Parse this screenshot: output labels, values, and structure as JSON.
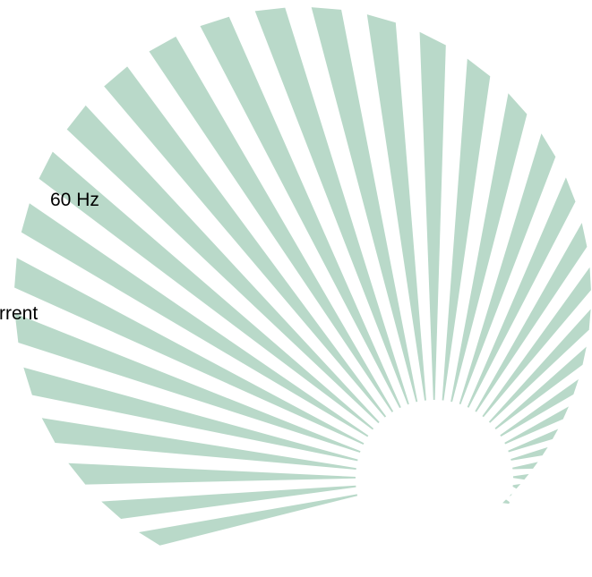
{
  "texts": {
    "frequency": "60 Hz",
    "current": "rrent"
  }
}
